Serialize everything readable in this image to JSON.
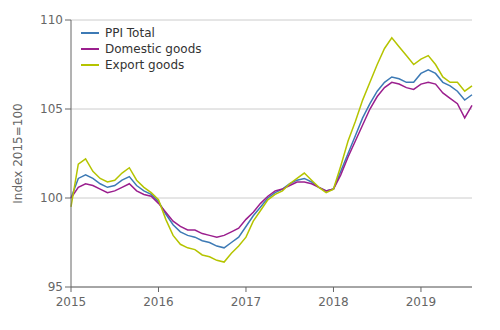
{
  "chart_data": {
    "type": "line",
    "ylabel": "Index 2015=100",
    "categories": [
      "2015",
      null,
      null,
      null,
      null,
      null,
      null,
      null,
      null,
      null,
      null,
      null,
      "2016",
      null,
      null,
      null,
      null,
      null,
      null,
      null,
      null,
      null,
      null,
      null,
      "2017",
      null,
      null,
      null,
      null,
      null,
      null,
      null,
      null,
      null,
      null,
      null,
      "2018",
      null,
      null,
      null,
      null,
      null,
      null,
      null,
      null,
      null,
      null,
      null,
      "2019",
      null,
      null,
      null,
      null,
      null,
      null,
      null
    ],
    "series": [
      {
        "name": "PPI Total",
        "color": "#3d7ab5",
        "values": [
          100.0,
          101.1,
          101.3,
          101.1,
          100.8,
          100.6,
          100.7,
          101.0,
          101.2,
          100.7,
          100.4,
          100.2,
          99.8,
          99.1,
          98.5,
          98.1,
          97.9,
          97.8,
          97.6,
          97.5,
          97.3,
          97.2,
          97.5,
          97.8,
          98.4,
          99.0,
          99.5,
          100.0,
          100.3,
          100.5,
          100.8,
          101.0,
          101.1,
          100.9,
          100.6,
          100.4,
          100.5,
          101.5,
          102.5,
          103.5,
          104.5,
          105.3,
          106.0,
          106.5,
          106.8,
          106.7,
          106.5,
          106.5,
          107.0,
          107.2,
          107.0,
          106.5,
          106.3,
          106.0,
          105.5,
          105.8
        ]
      },
      {
        "name": "Domestic goods",
        "color": "#9b1f8e",
        "values": [
          100.0,
          100.6,
          100.8,
          100.7,
          100.5,
          100.3,
          100.4,
          100.6,
          100.8,
          100.4,
          100.2,
          100.1,
          99.7,
          99.2,
          98.7,
          98.4,
          98.2,
          98.2,
          98.0,
          97.9,
          97.8,
          97.9,
          98.1,
          98.3,
          98.8,
          99.2,
          99.7,
          100.1,
          100.4,
          100.5,
          100.7,
          100.9,
          100.9,
          100.8,
          100.6,
          100.4,
          100.5,
          101.3,
          102.3,
          103.2,
          104.1,
          105.0,
          105.7,
          106.2,
          106.5,
          106.4,
          106.2,
          106.1,
          106.4,
          106.5,
          106.4,
          105.9,
          105.6,
          105.3,
          104.5,
          105.2
        ]
      },
      {
        "name": "Export goods",
        "color": "#b5c400",
        "values": [
          99.5,
          101.9,
          102.2,
          101.5,
          101.1,
          100.9,
          101.0,
          101.4,
          101.7,
          101.0,
          100.6,
          100.3,
          99.9,
          98.8,
          97.9,
          97.4,
          97.2,
          97.1,
          96.8,
          96.7,
          96.5,
          96.4,
          96.9,
          97.3,
          97.8,
          98.7,
          99.3,
          99.9,
          100.2,
          100.4,
          100.8,
          101.1,
          101.4,
          101.0,
          100.6,
          100.3,
          100.5,
          101.8,
          103.2,
          104.3,
          105.5,
          106.5,
          107.5,
          108.4,
          109.0,
          108.5,
          108.0,
          107.5,
          107.8,
          108.0,
          107.5,
          106.8,
          106.5,
          106.5,
          106.0,
          106.3
        ]
      }
    ],
    "ylim": [
      95,
      110
    ],
    "yticks": [
      95,
      100,
      105,
      110
    ],
    "grid": true,
    "legend": "upper left"
  }
}
